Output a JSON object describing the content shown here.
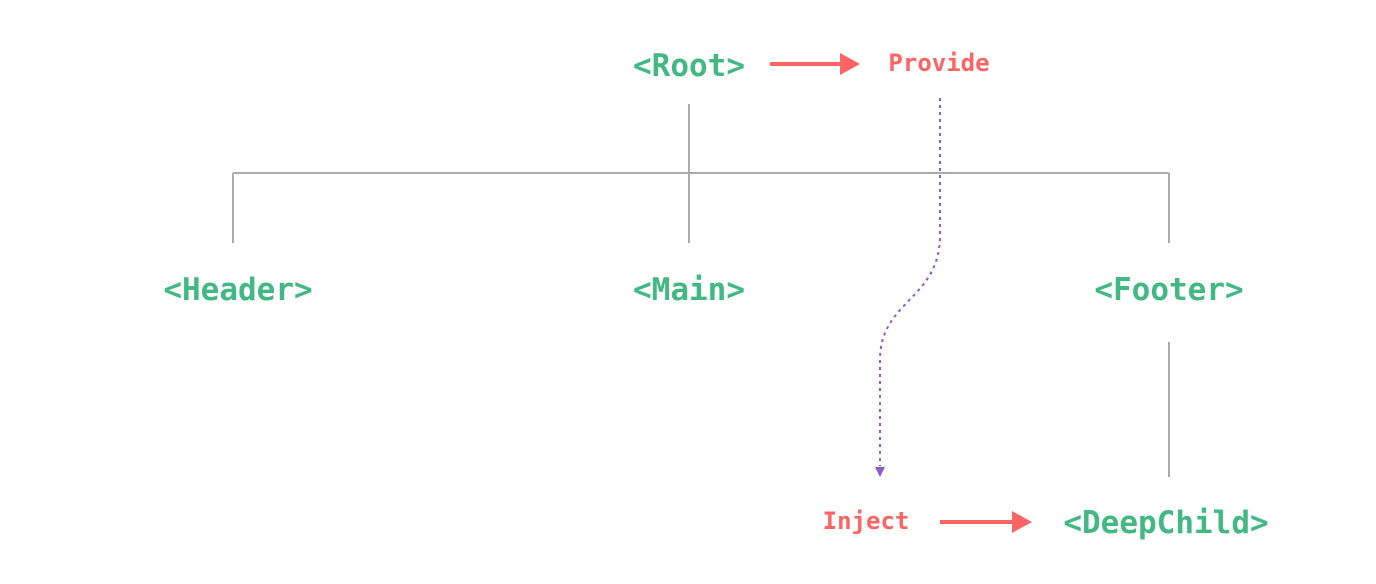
{
  "nodes": {
    "root": "<Root>",
    "header": "<Header>",
    "main": "<Main>",
    "footer": "<Footer>",
    "deep_child": "<DeepChild>"
  },
  "labels": {
    "provide": "Provide",
    "inject": "Inject"
  },
  "colors": {
    "component": "#42b883",
    "provide_inject": "#ff6464",
    "injection_path": "#8a5ccf",
    "tree_lines": "#aaaaaa"
  }
}
